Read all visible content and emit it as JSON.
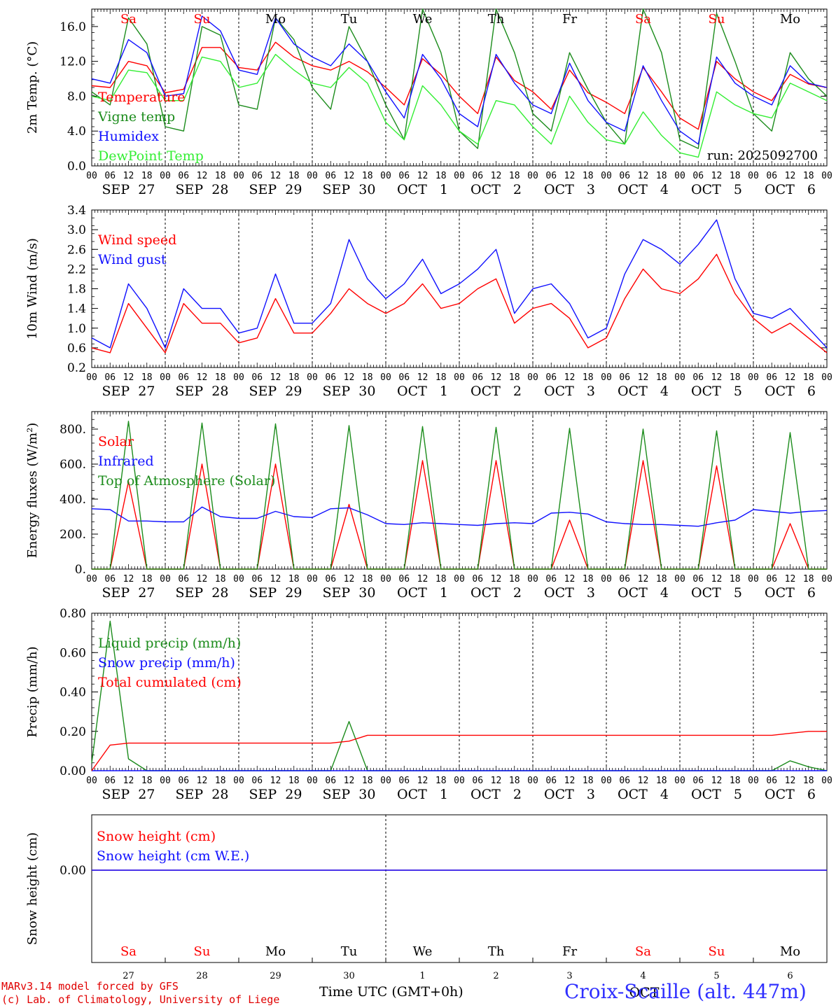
{
  "colors": {
    "red": "#ff0000",
    "green": "#1c8c1c",
    "blue": "#1010ff",
    "lightgreen": "#33ee33",
    "weekend": "#ff0000",
    "weekday": "#000000"
  },
  "days": [
    {
      "abbr": "Sa",
      "date": "SEP  27",
      "num": "27",
      "weekend": true
    },
    {
      "abbr": "Su",
      "date": "SEP  28",
      "num": "28",
      "weekend": true
    },
    {
      "abbr": "Mo",
      "date": "SEP  29",
      "num": "29",
      "weekend": false
    },
    {
      "abbr": "Tu",
      "date": "SEP  30",
      "num": "30",
      "weekend": false
    },
    {
      "abbr": "We",
      "date": "OCT   1",
      "num": "1",
      "weekend": false
    },
    {
      "abbr": "Th",
      "date": "OCT   2",
      "num": "2",
      "weekend": false
    },
    {
      "abbr": "Fr",
      "date": "OCT   3",
      "num": "3",
      "weekend": false
    },
    {
      "abbr": "Sa",
      "date": "OCT   4",
      "num": "4",
      "weekend": true
    },
    {
      "abbr": "Su",
      "date": "OCT   5",
      "num": "5",
      "weekend": true
    },
    {
      "abbr": "Mo",
      "date": "OCT   6",
      "num": "6",
      "weekend": false
    }
  ],
  "hour_ticks": [
    "00",
    "06",
    "12",
    "18"
  ],
  "hour_tick_end": "00",
  "run_label": "run: 2025092700",
  "footer": {
    "credit_line1": "MARv3.14 model forced by GFS",
    "credit_line2": "(c) Lab. of Climatology, University of Liege",
    "xlabel": "Time UTC (GMT+0h)",
    "month_label": "OCT",
    "station": "Croix-Scaille (alt. 447m)"
  },
  "chart_data": [
    {
      "type": "line",
      "title": "2m Temp. (°C)",
      "ylabel": "2m Temp. (°C)",
      "ylim": [
        0,
        18
      ],
      "yticks": [
        "0.0",
        "4.0",
        "8.0",
        "12.0",
        "16.0"
      ],
      "ytick_values": [
        0,
        4,
        8,
        12,
        16
      ],
      "x": "hours since SEP 27 00 UTC, 6-hourly",
      "legend": [
        "Temperature",
        "Vigne temp",
        "Humidex",
        "DewPoint Temp"
      ],
      "series": [
        {
          "name": "Temperature",
          "color": "red",
          "values": [
            9.2,
            9.0,
            12.0,
            11.5,
            8.4,
            8.8,
            13.6,
            13.6,
            11.3,
            11.0,
            14.2,
            12.5,
            11.5,
            11.0,
            12.0,
            10.8,
            9.0,
            7.0,
            12.3,
            10.5,
            8.0,
            6.0,
            12.5,
            9.8,
            8.5,
            6.5,
            11.0,
            8.4,
            7.3,
            6.0,
            11.3,
            8.5,
            5.5,
            4.2,
            12.0,
            10.0,
            8.5,
            7.5,
            10.5,
            9.4,
            9.0
          ]
        },
        {
          "name": "Vigne temp",
          "color": "green",
          "values": [
            8.5,
            7.0,
            17.0,
            14.0,
            4.5,
            4.0,
            16.0,
            15.0,
            7.0,
            6.5,
            17.0,
            14.5,
            9.0,
            6.5,
            16.0,
            12.0,
            7.0,
            3.0,
            18.0,
            13.0,
            4.0,
            2.0,
            18.0,
            13.0,
            6.0,
            4.0,
            13.0,
            8.8,
            5.0,
            2.5,
            18.0,
            13.0,
            3.0,
            2.0,
            17.5,
            12.0,
            6.0,
            4.0,
            13.0,
            10.0,
            8.0
          ]
        },
        {
          "name": "Humidex",
          "color": "blue",
          "values": [
            10.0,
            9.5,
            14.5,
            13.0,
            8.0,
            8.3,
            17.2,
            15.5,
            11.0,
            10.5,
            17.0,
            14.0,
            12.5,
            11.5,
            14.0,
            12.0,
            8.5,
            5.5,
            12.8,
            10.0,
            6.0,
            4.5,
            12.8,
            9.5,
            7.0,
            6.0,
            11.8,
            7.5,
            5.0,
            4.0,
            11.5,
            7.5,
            4.0,
            2.5,
            12.5,
            9.5,
            8.0,
            7.0,
            11.5,
            9.5,
            9.0
          ]
        },
        {
          "name": "DewPoint Temp",
          "color": "lightgreen",
          "values": [
            8.0,
            7.5,
            11.0,
            10.7,
            7.5,
            7.5,
            12.5,
            12.0,
            9.0,
            9.5,
            12.8,
            11.0,
            9.5,
            9.0,
            11.3,
            9.5,
            5.0,
            3.0,
            9.2,
            7.0,
            4.0,
            2.5,
            7.5,
            7.0,
            4.5,
            2.5,
            8.0,
            5.0,
            3.0,
            2.5,
            6.2,
            3.5,
            1.5,
            1.0,
            8.5,
            7.0,
            6.0,
            5.5,
            9.5,
            8.5,
            7.5
          ]
        }
      ]
    },
    {
      "type": "line",
      "ylabel": "10m Wind (m/s)",
      "ylim": [
        0.2,
        3.4
      ],
      "yticks": [
        "0.2",
        "0.6",
        "1.0",
        "1.4",
        "1.8",
        "2.2",
        "2.6",
        "3.0",
        "3.4"
      ],
      "ytick_values": [
        0.2,
        0.6,
        1.0,
        1.4,
        1.8,
        2.2,
        2.6,
        3.0,
        3.4
      ],
      "legend": [
        "Wind speed",
        "Wind gust"
      ],
      "series": [
        {
          "name": "Wind speed",
          "color": "red",
          "values": [
            0.6,
            0.5,
            1.5,
            1.0,
            0.5,
            1.5,
            1.1,
            1.1,
            0.7,
            0.8,
            1.6,
            0.9,
            0.9,
            1.3,
            1.8,
            1.5,
            1.3,
            1.5,
            1.9,
            1.4,
            1.5,
            1.8,
            2.0,
            1.1,
            1.4,
            1.5,
            1.2,
            0.6,
            0.8,
            1.6,
            2.2,
            1.8,
            1.7,
            2.0,
            2.5,
            1.7,
            1.2,
            0.9,
            1.1,
            0.8,
            0.5
          ]
        },
        {
          "name": "Wind gust",
          "color": "blue",
          "values": [
            0.8,
            0.6,
            1.9,
            1.4,
            0.6,
            1.8,
            1.4,
            1.4,
            0.9,
            1.0,
            2.1,
            1.1,
            1.1,
            1.5,
            2.8,
            2.0,
            1.6,
            1.9,
            2.4,
            1.7,
            1.9,
            2.2,
            2.6,
            1.3,
            1.8,
            1.9,
            1.5,
            0.8,
            1.0,
            2.1,
            2.8,
            2.6,
            2.3,
            2.7,
            3.2,
            2.0,
            1.3,
            1.2,
            1.4,
            1.0,
            0.6
          ]
        }
      ]
    },
    {
      "type": "line",
      "ylabel": "Energy fluxes (W/m²)",
      "ylim": [
        0,
        900
      ],
      "yticks": [
        "0.",
        "200.",
        "400.",
        "600.",
        "800."
      ],
      "ytick_values": [
        0,
        200,
        400,
        600,
        800
      ],
      "legend": [
        "Solar",
        "Infrared",
        "Top of Atmosphere (Solar)"
      ],
      "series": [
        {
          "name": "Solar",
          "color": "red",
          "values": [
            0,
            0,
            500,
            0,
            0,
            0,
            600,
            0,
            0,
            0,
            600,
            0,
            0,
            0,
            370,
            0,
            0,
            0,
            620,
            0,
            0,
            0,
            620,
            0,
            0,
            0,
            280,
            0,
            0,
            0,
            620,
            0,
            0,
            0,
            590,
            0,
            0,
            0,
            260,
            0,
            0
          ]
        },
        {
          "name": "Infrared",
          "color": "blue",
          "values": [
            345,
            340,
            275,
            275,
            270,
            270,
            355,
            300,
            290,
            290,
            330,
            300,
            295,
            345,
            350,
            310,
            260,
            255,
            265,
            260,
            255,
            250,
            260,
            265,
            260,
            320,
            325,
            315,
            270,
            260,
            255,
            255,
            250,
            245,
            265,
            280,
            340,
            330,
            320,
            330,
            335
          ]
        },
        {
          "name": "Top of Atmosphere (Solar)",
          "color": "green",
          "values": [
            0,
            0,
            845,
            0,
            0,
            0,
            835,
            0,
            0,
            0,
            830,
            0,
            0,
            0,
            820,
            0,
            0,
            0,
            815,
            0,
            0,
            0,
            810,
            0,
            0,
            0,
            805,
            0,
            0,
            0,
            800,
            0,
            0,
            0,
            790,
            0,
            0,
            0,
            780,
            0,
            0
          ]
        }
      ]
    },
    {
      "type": "line",
      "ylabel": "Precip (mm/h)",
      "ylim": [
        0,
        0.8
      ],
      "yticks": [
        "0.00",
        "0.20",
        "0.40",
        "0.60",
        "0.80"
      ],
      "ytick_values": [
        0,
        0.2,
        0.4,
        0.6,
        0.8
      ],
      "legend": [
        "Liquid precip (mm/h)",
        "Snow precip (mm/h)",
        "Total cumulated (cm)"
      ],
      "series": [
        {
          "name": "Liquid precip (mm/h)",
          "color": "green",
          "values": [
            0.04,
            0.76,
            0.06,
            0,
            0,
            0,
            0,
            0,
            0,
            0,
            0,
            0,
            0,
            0,
            0.25,
            0,
            0,
            0,
            0,
            0,
            0,
            0,
            0,
            0,
            0,
            0,
            0,
            0,
            0,
            0,
            0,
            0,
            0,
            0,
            0,
            0,
            0,
            0,
            0.05,
            0.02,
            0
          ]
        },
        {
          "name": "Snow precip (mm/h)",
          "color": "blue",
          "values": [
            0,
            0,
            0,
            0,
            0,
            0,
            0,
            0,
            0,
            0,
            0,
            0,
            0,
            0,
            0,
            0,
            0,
            0,
            0,
            0,
            0,
            0,
            0,
            0,
            0,
            0,
            0,
            0,
            0,
            0,
            0,
            0,
            0,
            0,
            0,
            0,
            0,
            0,
            0,
            0,
            0
          ]
        },
        {
          "name": "Total cumulated (cm)",
          "color": "red",
          "values": [
            0,
            0.13,
            0.14,
            0.14,
            0.14,
            0.14,
            0.14,
            0.14,
            0.14,
            0.14,
            0.14,
            0.14,
            0.14,
            0.14,
            0.15,
            0.18,
            0.18,
            0.18,
            0.18,
            0.18,
            0.18,
            0.18,
            0.18,
            0.18,
            0.18,
            0.18,
            0.18,
            0.18,
            0.18,
            0.18,
            0.18,
            0.18,
            0.18,
            0.18,
            0.18,
            0.18,
            0.18,
            0.18,
            0.19,
            0.2,
            0.2
          ]
        }
      ]
    },
    {
      "type": "line",
      "ylabel": "Snow height (cm)",
      "ylim": [
        -1,
        1
      ],
      "yticks": [
        "0.00"
      ],
      "ytick_values": [
        0
      ],
      "legend": [
        "Snow height (cm)",
        "Snow height (cm W.E.)"
      ],
      "series": [
        {
          "name": "Snow height (cm)",
          "color": "red",
          "values": [
            0,
            0
          ]
        },
        {
          "name": "Snow height (cm W.E.)",
          "color": "blue",
          "values": [
            0,
            0
          ]
        }
      ]
    }
  ]
}
